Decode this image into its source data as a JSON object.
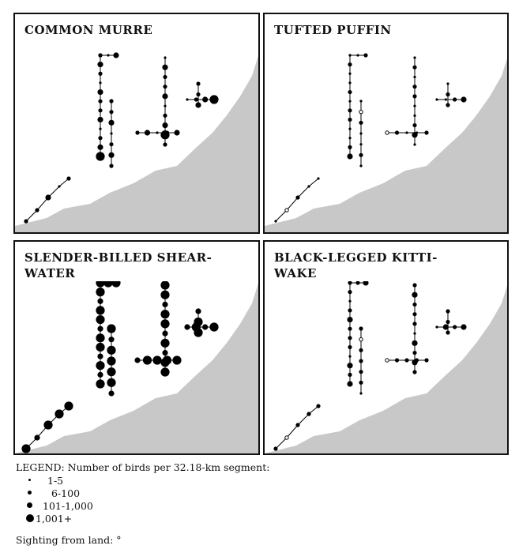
{
  "panels": [
    {
      "title": "COMMON MURRE"
    },
    {
      "title": "TUFTED PUFFIN"
    },
    {
      "title": "SLENDER-BILLED SHEAR-\nWATER"
    },
    {
      "title": "BLACK-LEGGED KITTI-\nWAKE"
    }
  ],
  "legend": {
    "heading": "LEGEND: Number of birds per 32.18-km segment:",
    "classes": [
      "1-5",
      "6-100",
      "101-1,000",
      "1,001+"
    ],
    "sighting_label": "Sighting from land: °"
  },
  "colors": {
    "land": "#9a9a9a",
    "birds": "#000000",
    "border": "#111111"
  }
}
